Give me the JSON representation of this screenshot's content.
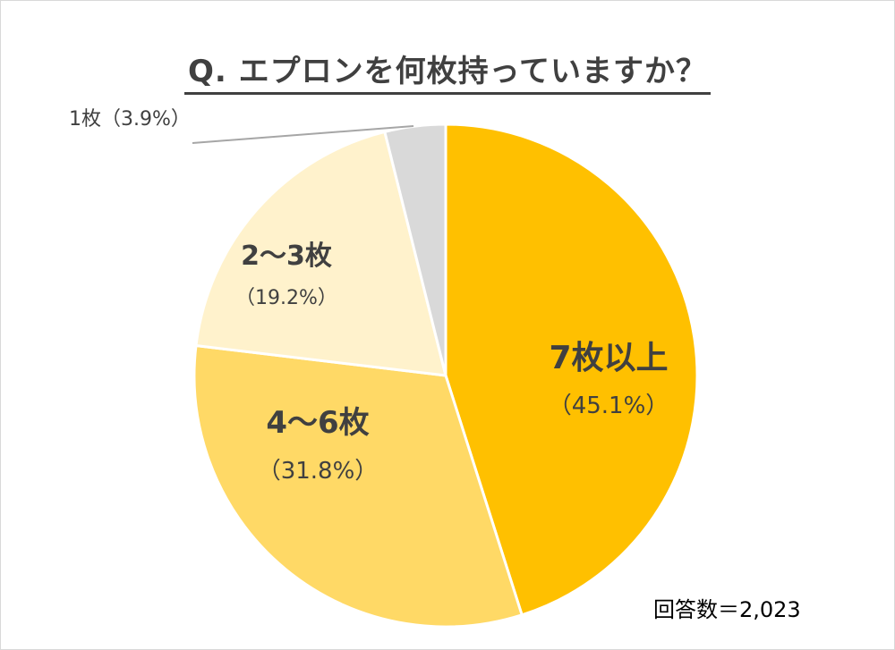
{
  "title": "Q. エプロンを何枚持っていますか？",
  "note": "回答数＝2,023",
  "chart_data": {
    "type": "pie",
    "title": "Q. エプロンを何枚持っていますか？",
    "slices": [
      {
        "label": "7枚以上",
        "value": 45.1,
        "pct_text": "（45.1%）",
        "color": "#FFC000"
      },
      {
        "label": "4～6枚",
        "value": 31.8,
        "pct_text": "（31.8%）",
        "color": "#FFD966"
      },
      {
        "label": "2～3枚",
        "value": 19.2,
        "pct_text": "（19.2%）",
        "color": "#FFF2CC"
      },
      {
        "label": "1枚",
        "value": 3.9,
        "pct_text": "（3.9%）",
        "color": "#D9D9D9"
      }
    ],
    "total_responses": 2023,
    "legend": "none"
  }
}
